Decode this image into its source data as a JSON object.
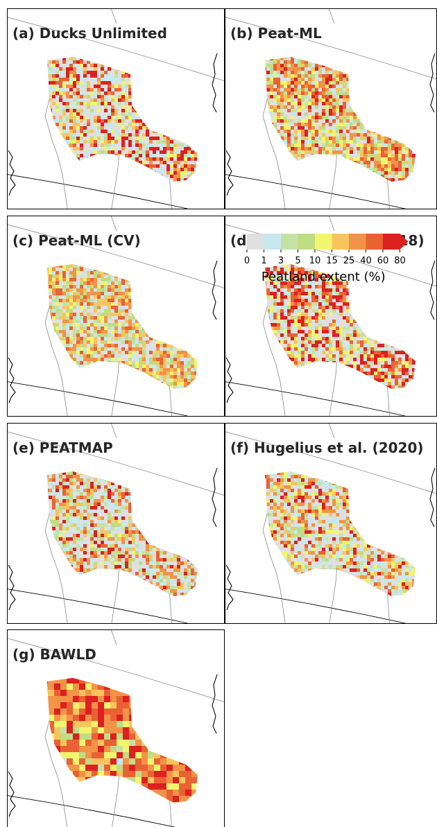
{
  "panels": [
    {
      "id": "a",
      "title": "(a) Ducks Unlimited",
      "dataset": "Ducks Unlimited"
    },
    {
      "id": "b",
      "title": "(b) Peat-ML",
      "dataset": "Peat-ML"
    },
    {
      "id": "c",
      "title": "(c) Peat-ML (CV)",
      "dataset": "Peat-ML (CV)"
    },
    {
      "id": "d",
      "title": "(d) Webster et al. (2018)",
      "dataset": "Webster et al. (2018)"
    },
    {
      "id": "e",
      "title": "(e) PEATMAP",
      "dataset": "PEATMAP"
    },
    {
      "id": "f",
      "title": "(f) Hugelius et al. (2020)",
      "dataset": "Hugelius et al. (2020)"
    },
    {
      "id": "g",
      "title": "(g) BAWLD",
      "dataset": "BAWLD"
    }
  ],
  "colorbar": {
    "label": "Peatland extent (%)",
    "ticks": [
      "0",
      "1",
      "3",
      "5",
      "10",
      "15",
      "25",
      "40",
      "60",
      "80"
    ],
    "colors": [
      "#e0e0e0",
      "#c6e8ee",
      "#c5e2a6",
      "#c0dc84",
      "#f2f56e",
      "#f8c55c",
      "#f39347",
      "#ea6234",
      "#dd2020"
    ],
    "extend": "max"
  }
}
